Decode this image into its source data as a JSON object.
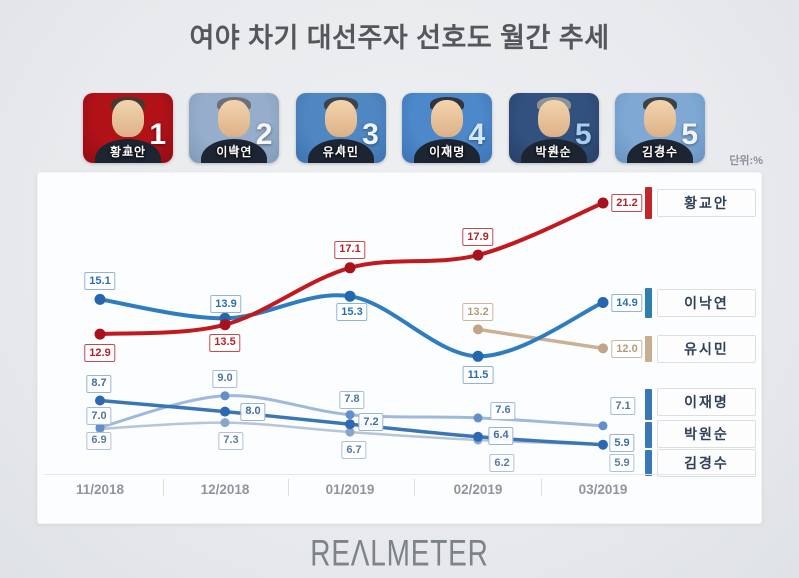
{
  "title": "여야 차기 대선주자 선호도 월간 추세",
  "unit_label": "단위:%",
  "footer_logo": "REALMETER",
  "candidates": [
    {
      "name": "황교안",
      "rank": "1",
      "bg": "#b01218",
      "bg2": "#8f0c12",
      "rank_color": "#ffffff",
      "hair": "#433a33"
    },
    {
      "name": "이낙연",
      "rank": "2",
      "bg": "#96aecb",
      "bg2": "#7e99b9",
      "rank_color": "#f4f8fc",
      "hair": "#6d7175"
    },
    {
      "name": "유시민",
      "rank": "3",
      "bg": "#4f87c3",
      "bg2": "#3d72ad",
      "rank_color": "#eef5fc",
      "hair": "#3f4347"
    },
    {
      "name": "이재명",
      "rank": "4",
      "bg": "#4d88cb",
      "bg2": "#3a73b5",
      "rank_color": "#cfe9f8",
      "hair": "#2f353b"
    },
    {
      "name": "박원순",
      "rank": "5",
      "bg": "#32517e",
      "bg2": "#263f66",
      "rank_color": "#a9cdf0",
      "hair": "#8e9296"
    },
    {
      "name": "김경수",
      "rank": "5",
      "bg": "#7fa9d4",
      "bg2": "#6692c2",
      "rank_color": "#eef5fc",
      "hair": "#3b4248"
    }
  ],
  "chart_data": {
    "type": "line",
    "title": "여야 차기 대선주자 선호도 월간 추세",
    "unit": "%",
    "x": [
      "11/2018",
      "12/2018",
      "01/2019",
      "02/2019",
      "03/2019"
    ],
    "legend_position": "right",
    "series": [
      {
        "name": "황교안",
        "values": [
          12.9,
          13.5,
          17.1,
          17.9,
          21.2
        ],
        "color": "#c2191f",
        "dot_color": "#a8121c",
        "label_text": "#b5222a",
        "label_border": "#c44a4e",
        "legend_bar": "#bf272c"
      },
      {
        "name": "이낙연",
        "values": [
          15.1,
          13.9,
          15.3,
          11.5,
          14.9
        ],
        "color": "#2f7dc0",
        "dot_color": "#2567ad",
        "label_text": "#2c6fae",
        "label_border": "#8fb4d6",
        "legend_bar": "#2f7fae"
      },
      {
        "name": "유시민",
        "values": [
          null,
          null,
          null,
          13.2,
          12.0
        ],
        "color": "#ccb096",
        "dot_color": "#c2a487",
        "label_text": "#b49a7c",
        "label_border": "#cdb79f",
        "legend_bar": "#c7ae92"
      },
      {
        "name": "이재명",
        "values": [
          7.0,
          9.0,
          7.8,
          7.6,
          7.1
        ],
        "color": "#9fb9dc",
        "dot_color": "#618fcb",
        "label_text": "#4a76ab",
        "label_border": "#a4bcd9",
        "legend_bar": "#3a77b7"
      },
      {
        "name": "박원순",
        "values": [
          8.7,
          8.0,
          7.2,
          6.4,
          5.9
        ],
        "color": "#3a76b5",
        "dot_color": "#2d69b0",
        "label_text": "#3e6ea8",
        "label_border": "#9ab4d4",
        "legend_bar": "#3a77b7"
      },
      {
        "name": "김경수",
        "values": [
          6.9,
          7.3,
          6.7,
          6.2,
          5.9
        ],
        "color": "#b7c5d8",
        "dot_color": "#87a6c9",
        "label_text": "#5a7da6",
        "label_border": "#afc2d8",
        "legend_bar": "#3a77b7"
      }
    ]
  }
}
